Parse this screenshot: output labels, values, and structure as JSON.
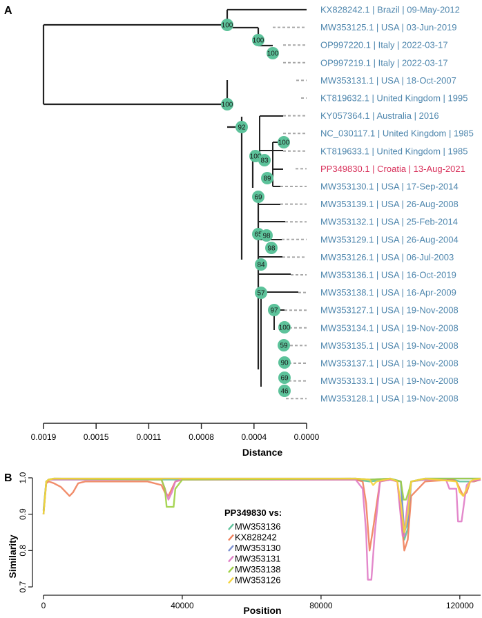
{
  "chart_data": [
    {
      "panel": "A",
      "type": "tree",
      "title": "",
      "xlabel": "Distance",
      "xlim": [
        0.0019,
        0.0
      ],
      "xticks": [
        "0.0019",
        "0.0015",
        "0.0011",
        "0.0008",
        "0.0004",
        "0.0000"
      ],
      "highlight_color": "#d8315b",
      "label_color": "#4e86ad",
      "node_color": "#5cc29a",
      "tips": [
        {
          "label": "KX828242.1 | Brazil | 09-May-2012",
          "highlight": false
        },
        {
          "label": "MW353125.1 | USA | 03-Jun-2019",
          "highlight": false
        },
        {
          "label": "OP997220.1 | Italy | 2022-03-17",
          "highlight": false
        },
        {
          "label": "OP997219.1 | Italy | 2022-03-17",
          "highlight": false
        },
        {
          "label": "MW353131.1 | USA | 18-Oct-2007",
          "highlight": false
        },
        {
          "label": "KT819632.1 | United Kingdom | 1995",
          "highlight": false
        },
        {
          "label": "KY057364.1 | Australia | 2016",
          "highlight": false
        },
        {
          "label": "NC_030117.1 | United Kingdom | 1985",
          "highlight": false
        },
        {
          "label": "KT819633.1 | United Kingdom | 1985",
          "highlight": false
        },
        {
          "label": "PP349830.1 | Croatia | 13-Aug-2021",
          "highlight": true
        },
        {
          "label": "MW353130.1 | USA | 17-Sep-2014",
          "highlight": false
        },
        {
          "label": "MW353139.1 | USA | 26-Aug-2008",
          "highlight": false
        },
        {
          "label": "MW353132.1 | USA | 25-Feb-2014",
          "highlight": false
        },
        {
          "label": "MW353129.1 | USA | 26-Aug-2004",
          "highlight": false
        },
        {
          "label": "MW353126.1 | USA | 06-Jul-2003",
          "highlight": false
        },
        {
          "label": "MW353136.1 | USA | 16-Oct-2019",
          "highlight": false
        },
        {
          "label": "MW353138.1 | USA | 16-Apr-2009",
          "highlight": false
        },
        {
          "label": "MW353127.1 | USA | 19-Nov-2008",
          "highlight": false
        },
        {
          "label": "MW353134.1 | USA | 19-Nov-2008",
          "highlight": false
        },
        {
          "label": "MW353135.1 | USA | 19-Nov-2008",
          "highlight": false
        },
        {
          "label": "MW353137.1 | USA | 19-Nov-2008",
          "highlight": false
        },
        {
          "label": "MW353133.1 | USA | 19-Nov-2008",
          "highlight": false
        },
        {
          "label": "MW353128.1 | USA | 19-Nov-2008",
          "highlight": false
        }
      ],
      "node_support": [
        "100",
        "100",
        "100",
        "100",
        "92",
        "100",
        "83",
        "100",
        "89",
        "69",
        "65",
        "98",
        "98",
        "84",
        "57",
        "97",
        "100",
        "59",
        "90",
        "69",
        "46"
      ]
    },
    {
      "panel": "B",
      "type": "line",
      "title": "",
      "xlabel": "Position",
      "ylabel": "Similarity",
      "xlim": [
        0,
        126000
      ],
      "ylim": [
        0.7,
        1.0
      ],
      "xticks": [
        0,
        40000,
        80000,
        120000
      ],
      "xtick_labels": [
        "0",
        "40000",
        "80000",
        "120000"
      ],
      "yticks": [
        0.7,
        0.8,
        0.9,
        1.0
      ],
      "ytick_labels": [
        "0.7",
        "0.8",
        "0.9",
        "1.0"
      ],
      "legend_title": "PP349830 vs:",
      "series": [
        {
          "name": "MW353136",
          "color": "#5cc29a",
          "x": [
            0,
            800,
            1500,
            3000,
            90000,
            94000,
            100000,
            103000,
            104000,
            105000,
            106000,
            110000,
            118000,
            120000,
            122000,
            124000,
            126000
          ],
          "y": [
            0.91,
            0.99,
            0.995,
            0.995,
            0.995,
            0.99,
            0.995,
            0.99,
            0.83,
            0.86,
            0.99,
            0.995,
            0.995,
            0.99,
            0.99,
            0.99,
            0.995
          ]
        },
        {
          "name": "KX828242",
          "color": "#f07f5a",
          "x": [
            0,
            800,
            1500,
            3000,
            5000,
            6500,
            7500,
            8500,
            10000,
            12000,
            20000,
            30000,
            34000,
            35000,
            36000,
            37000,
            38000,
            40000,
            90000,
            92000,
            93000,
            94000,
            95000,
            97000,
            100000,
            102000,
            103000,
            104000,
            105000,
            106000,
            110000,
            118000,
            119000,
            120000,
            121000,
            122000,
            123000,
            124000,
            126000
          ],
          "y": [
            0.9,
            0.985,
            0.99,
            0.985,
            0.975,
            0.96,
            0.95,
            0.96,
            0.985,
            0.99,
            0.99,
            0.99,
            0.98,
            0.96,
            0.95,
            0.97,
            0.99,
            0.995,
            0.995,
            0.99,
            0.93,
            0.8,
            0.86,
            0.99,
            0.995,
            0.99,
            0.9,
            0.8,
            0.83,
            0.95,
            0.99,
            0.995,
            0.99,
            0.97,
            0.95,
            0.96,
            0.99,
            0.99,
            0.995
          ]
        },
        {
          "name": "MW353130",
          "color": "#7b8fd1",
          "x": [
            0,
            800,
            1500,
            3000,
            90000,
            94000,
            100000,
            103000,
            104000,
            105000,
            106000,
            110000,
            126000
          ],
          "y": [
            0.91,
            0.99,
            0.995,
            0.998,
            0.998,
            0.995,
            0.998,
            0.99,
            0.85,
            0.88,
            0.99,
            0.998,
            0.998
          ]
        },
        {
          "name": "MW353131",
          "color": "#e07bc5",
          "x": [
            0,
            800,
            1500,
            3000,
            34000,
            35000,
            36000,
            37000,
            38000,
            40000,
            90000,
            92000,
            93000,
            93500,
            94500,
            95500,
            97000,
            100000,
            102000,
            103500,
            104000,
            104800,
            105500,
            106000,
            110000,
            116000,
            117000,
            119000,
            119500,
            120500,
            121500,
            122000,
            123000,
            126000
          ],
          "y": [
            0.9,
            0.99,
            0.995,
            0.995,
            0.995,
            0.97,
            0.94,
            0.96,
            0.99,
            0.995,
            0.995,
            0.97,
            0.85,
            0.72,
            0.72,
            0.85,
            0.99,
            0.995,
            0.99,
            0.84,
            0.84,
            0.92,
            0.96,
            0.99,
            0.995,
            0.995,
            0.97,
            0.97,
            0.88,
            0.88,
            0.95,
            0.98,
            0.99,
            0.995
          ]
        },
        {
          "name": "MW353138",
          "color": "#9dd042",
          "x": [
            0,
            800,
            1500,
            3000,
            34000,
            35000,
            35500,
            37500,
            38000,
            40000,
            90000,
            94000,
            100000,
            103000,
            103800,
            104500,
            105500,
            106000,
            110000,
            126000
          ],
          "y": [
            0.9,
            0.99,
            0.995,
            0.998,
            0.995,
            0.97,
            0.92,
            0.92,
            0.97,
            0.995,
            0.998,
            0.995,
            0.998,
            0.99,
            0.94,
            0.94,
            0.97,
            0.99,
            0.998,
            0.998
          ]
        },
        {
          "name": "MW353126",
          "color": "#f5d43c",
          "x": [
            0,
            800,
            1500,
            3000,
            90000,
            94000,
            95000,
            96000,
            100000,
            102000,
            103000,
            104000,
            105000,
            106000,
            110000,
            119000,
            120000,
            121000,
            122000,
            123000,
            124000,
            126000
          ],
          "y": [
            0.9,
            0.99,
            0.995,
            0.998,
            0.998,
            0.995,
            0.98,
            0.99,
            0.998,
            0.99,
            0.93,
            0.85,
            0.9,
            0.99,
            0.998,
            0.99,
            0.96,
            0.95,
            0.97,
            0.99,
            0.995,
            0.998
          ]
        }
      ]
    }
  ]
}
